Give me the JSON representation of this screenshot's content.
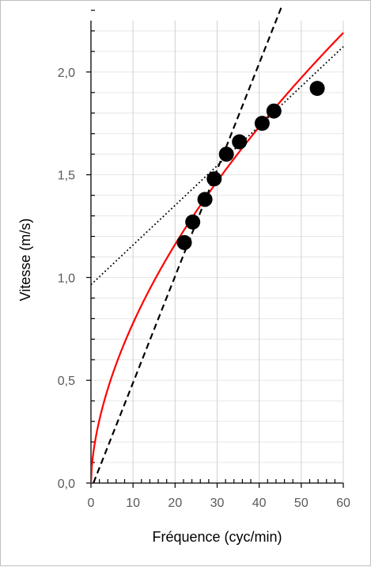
{
  "chart_data": {
    "type": "scatter",
    "title": "",
    "xlabel": "Fréquence (cyc/min)",
    "ylabel": "Vitesse (m/s)",
    "xlim": [
      0,
      60
    ],
    "ylim": [
      0,
      2.25
    ],
    "xticks": [
      0,
      10,
      20,
      30,
      40,
      50,
      60
    ],
    "xtick_labels": [
      "0",
      "10",
      "20",
      "30",
      "40",
      "50",
      "60"
    ],
    "yticks": [
      0,
      0.5,
      1.0,
      1.5,
      2.0
    ],
    "ytick_labels": [
      "0,0",
      "0,5",
      "1,0",
      "1,5",
      "2,0"
    ],
    "grid": "vertical-major, horizontal-minor",
    "legend": "none",
    "series": [
      {
        "kind": "points",
        "color": "#000000",
        "x": [
          22.2,
          24.2,
          27.1,
          29.3,
          32.2,
          35.3,
          40.7,
          43.5,
          53.8
        ],
        "y": [
          1.17,
          1.27,
          1.38,
          1.48,
          1.6,
          1.66,
          1.75,
          1.81,
          1.92
        ]
      },
      {
        "kind": "power-curve",
        "style": "solid",
        "color": "#ff0000",
        "a": 0.2055,
        "b": 0.578
      },
      {
        "kind": "linear",
        "style": "dashed",
        "color": "#000000",
        "slope": 0.0518,
        "intercept": -0.03
      },
      {
        "kind": "linear",
        "style": "dotted",
        "color": "#000000",
        "slope": 0.0193,
        "intercept": 0.965
      }
    ]
  }
}
